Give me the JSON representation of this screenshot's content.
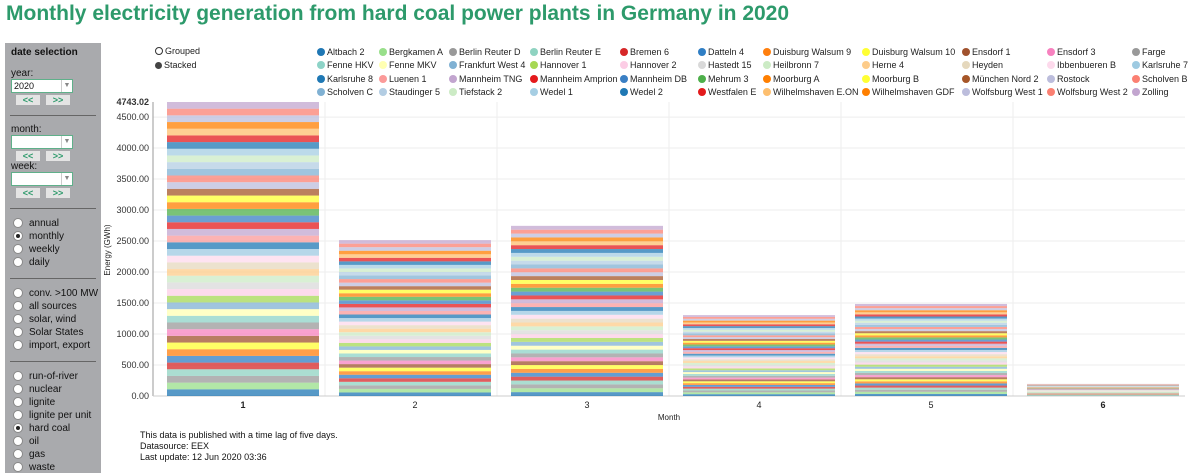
{
  "title": "Monthly electricity generation from hard coal power plants in Germany in 2020",
  "panel": {
    "heading": "date selection",
    "year_label": "year:",
    "year_value": "2020",
    "month_label": "month:",
    "month_value": "",
    "week_label": "week:",
    "week_value": "",
    "prev": "<<",
    "next": ">>",
    "period_options": [
      {
        "label": "annual",
        "selected": false
      },
      {
        "label": "monthly",
        "selected": true
      },
      {
        "label": "weekly",
        "selected": false
      },
      {
        "label": "daily",
        "selected": false
      }
    ],
    "group_options": [
      {
        "label": "conv. >100 MW",
        "selected": false
      },
      {
        "label": "all sources",
        "selected": false
      },
      {
        "label": "solar, wind",
        "selected": false
      },
      {
        "label": "Solar States",
        "selected": false
      },
      {
        "label": "import, export",
        "selected": false
      }
    ],
    "source_options": [
      {
        "label": "run-of-river",
        "selected": false
      },
      {
        "label": "nuclear",
        "selected": false
      },
      {
        "label": "lignite",
        "selected": false
      },
      {
        "label": "lignite per unit",
        "selected": false
      },
      {
        "label": "hard coal",
        "selected": true
      },
      {
        "label": "oil",
        "selected": false
      },
      {
        "label": "gas",
        "selected": false
      },
      {
        "label": "waste",
        "selected": false
      }
    ]
  },
  "chart_mode": {
    "grouped": "Grouped",
    "stacked": "Stacked",
    "selected": "stacked"
  },
  "chart_data": {
    "type": "bar",
    "stacked": true,
    "xlabel": "Month",
    "ylabel": "Energy (GWh)",
    "categories": [
      "1",
      "2",
      "3",
      "4",
      "5",
      "6"
    ],
    "totals": [
      4743.02,
      2515,
      2745,
      1305,
      1485,
      195
    ],
    "ylim": [
      0,
      4743.02
    ],
    "y_max_label": "4743.02",
    "yticks": [
      "0.00",
      "500.00",
      "1000.00",
      "1500.00",
      "2000.00",
      "2500.00",
      "3000.00",
      "3500.00",
      "4000.00",
      "4500.00"
    ],
    "grid": true,
    "legend_position": "top",
    "series": [
      {
        "name": "Altbach 2",
        "color": "#1f77b4"
      },
      {
        "name": "Bergkamen A",
        "color": "#98df8a"
      },
      {
        "name": "Berlin Reuter D",
        "color": "#999999"
      },
      {
        "name": "Berlin Reuter E",
        "color": "#8fd3c1"
      },
      {
        "name": "Bremen 6",
        "color": "#d62728"
      },
      {
        "name": "Datteln 4",
        "color": "#2f7ec4"
      },
      {
        "name": "Duisburg Walsum 9",
        "color": "#ff7f0e"
      },
      {
        "name": "Duisburg Walsum 10",
        "color": "#ffff33"
      },
      {
        "name": "Ensdorf 1",
        "color": "#a0522d"
      },
      {
        "name": "Ensdorf 3",
        "color": "#f781bf"
      },
      {
        "name": "Farge",
        "color": "#999999"
      },
      {
        "name": "Fenne HKV",
        "color": "#8dd3c7"
      },
      {
        "name": "Fenne MKV",
        "color": "#ffffb3"
      },
      {
        "name": "Frankfurt West 4",
        "color": "#80b1d3"
      },
      {
        "name": "Hannover 1",
        "color": "#a6d854"
      },
      {
        "name": "Hannover 2",
        "color": "#fccde5"
      },
      {
        "name": "Hastedt 15",
        "color": "#d9d9d9"
      },
      {
        "name": "Heilbronn 7",
        "color": "#ccebc5"
      },
      {
        "name": "Herne 4",
        "color": "#fdcc8a"
      },
      {
        "name": "Heyden",
        "color": "#e5d8bd"
      },
      {
        "name": "Ibbenbueren B",
        "color": "#fddaec"
      },
      {
        "name": "Karlsruhe 7",
        "color": "#9ecae1"
      },
      {
        "name": "Karlsruhe 8",
        "color": "#1f78b4"
      },
      {
        "name": "Luenen 1",
        "color": "#fb9a99"
      },
      {
        "name": "Mannheim TNG",
        "color": "#c2a5cf"
      },
      {
        "name": "Mannheim Amprion",
        "color": "#e41a1c"
      },
      {
        "name": "Mannheim DB",
        "color": "#3a7fc4"
      },
      {
        "name": "Mehrum 3",
        "color": "#4daf4a"
      },
      {
        "name": "Moorburg A",
        "color": "#ff7f00"
      },
      {
        "name": "Moorburg B",
        "color": "#ffff33"
      },
      {
        "name": "München Nord 2",
        "color": "#a65628"
      },
      {
        "name": "Rostock",
        "color": "#bcbddc"
      },
      {
        "name": "Scholven B",
        "color": "#fb8072"
      },
      {
        "name": "Scholven C",
        "color": "#80b1d3"
      },
      {
        "name": "Staudinger 5",
        "color": "#b3cde3"
      },
      {
        "name": "Tiefstack 2",
        "color": "#ccebc5"
      },
      {
        "name": "Wedel 1",
        "color": "#a6cee3"
      },
      {
        "name": "Wedel 2",
        "color": "#1f78b4"
      },
      {
        "name": "Westfalen E",
        "color": "#e31a1c"
      },
      {
        "name": "Wilhelmshaven E.ON",
        "color": "#fdbf6f"
      },
      {
        "name": "Wilhelmshaven GDF",
        "color": "#ff7f00"
      },
      {
        "name": "Wolfsburg West 1",
        "color": "#bcbddc"
      },
      {
        "name": "Wolfsburg West 2",
        "color": "#fb8072"
      },
      {
        "name": "Zolling",
        "color": "#c2a5cf"
      }
    ]
  },
  "footer": {
    "note": "This data is published with a time lag of five days.",
    "source": "Datasource: EEX",
    "update": "Last update: 12 Jun 2020 03:36"
  },
  "colors": {
    "title": "#2d9a6b",
    "panel": "#a9aaad"
  }
}
